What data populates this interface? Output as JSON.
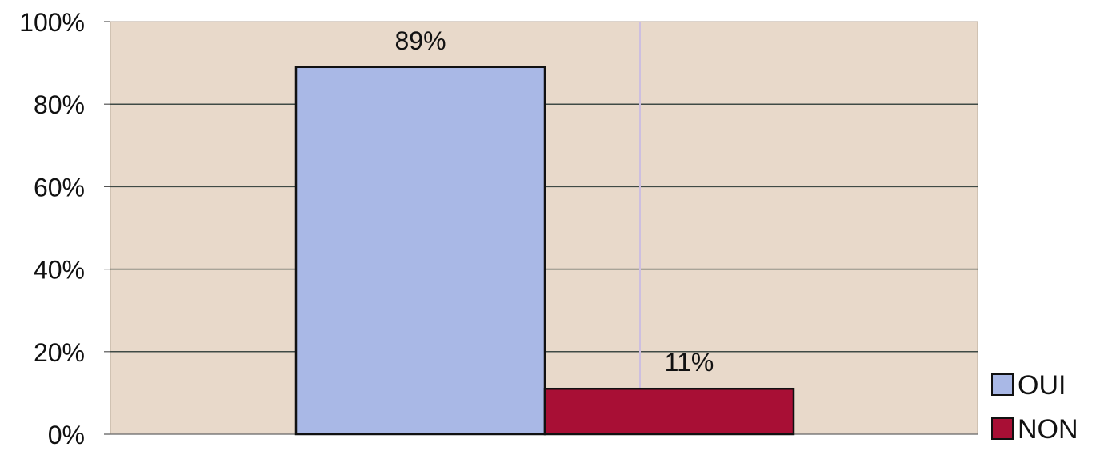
{
  "chart_data": {
    "type": "bar",
    "categories": [
      "OUI",
      "NON"
    ],
    "series": [
      {
        "name": "OUI",
        "values": [
          89,
          null
        ],
        "color": "#a9b8e6"
      },
      {
        "name": "NON",
        "values": [
          null,
          11
        ],
        "color": "#a80f35"
      }
    ],
    "values": [
      89,
      11
    ],
    "data_labels": [
      "89%",
      "11%"
    ],
    "yticks": [
      "0%",
      "20%",
      "40%",
      "60%",
      "80%",
      "100%"
    ],
    "ylim": [
      0,
      100
    ],
    "title": "",
    "xlabel": "",
    "ylabel": "",
    "grid": true,
    "legend_position": "bottom-right",
    "legend": [
      "OUI",
      "NON"
    ],
    "colors": {
      "plot_background": "#e8d9ca",
      "gridline": "#3f4a45",
      "bar_outline": "#111111"
    }
  }
}
